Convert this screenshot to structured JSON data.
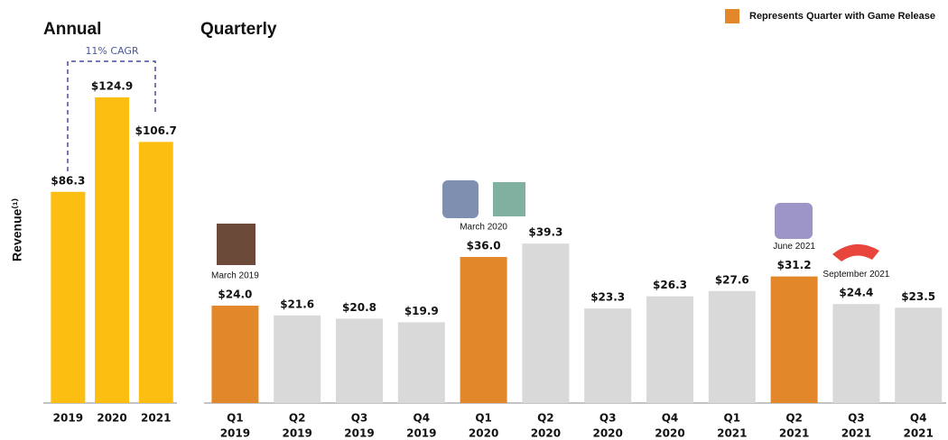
{
  "chart_data": [
    {
      "type": "bar",
      "title": "Annual",
      "categories": [
        [
          "2019"
        ],
        [
          "2020"
        ],
        [
          "2021"
        ]
      ],
      "values": [
        86.3,
        124.9,
        106.7
      ],
      "value_labels": [
        "$86.3",
        "$124.9",
        "$106.7"
      ],
      "color": "#FDBE12",
      "ylim": [
        0,
        140
      ],
      "ylabel": "Revenue⁽¹⁾",
      "annotation": "11% CAGR"
    },
    {
      "type": "bar",
      "title": "Quarterly",
      "categories": [
        [
          "Q1",
          "2019"
        ],
        [
          "Q2",
          "2019"
        ],
        [
          "Q3",
          "2019"
        ],
        [
          "Q4",
          "2019"
        ],
        [
          "Q1",
          "2020"
        ],
        [
          "Q2",
          "2020"
        ],
        [
          "Q3",
          "2020"
        ],
        [
          "Q4",
          "2020"
        ],
        [
          "Q1",
          "2021"
        ],
        [
          "Q2",
          "2021"
        ],
        [
          "Q3",
          "2021"
        ],
        [
          "Q4",
          "2021"
        ]
      ],
      "values": [
        24.0,
        21.6,
        20.8,
        19.9,
        36.0,
        39.3,
        23.3,
        26.3,
        27.6,
        31.2,
        24.4,
        23.5
      ],
      "value_labels": [
        "$24.0",
        "$21.6",
        "$20.8",
        "$19.9",
        "$36.0",
        "$39.3",
        "$23.3",
        "$26.3",
        "$27.6",
        "$31.2",
        "$24.4",
        "$23.5"
      ],
      "colors": [
        "#E3882A",
        "#D9D9D9",
        "#D9D9D9",
        "#D9D9D9",
        "#E3882A",
        "#D9D9D9",
        "#D9D9D9",
        "#D9D9D9",
        "#D9D9D9",
        "#E3882A",
        "#D9D9D9",
        "#D9D9D9"
      ],
      "annotations": [
        "March 2019",
        null,
        null,
        null,
        "March 2020",
        null,
        null,
        null,
        null,
        "June 2021",
        "September 2021",
        null
      ],
      "ylim": [
        0,
        80
      ],
      "legend": {
        "label": "Represents Quarter with Game Release",
        "color": "#E3882A"
      }
    }
  ]
}
